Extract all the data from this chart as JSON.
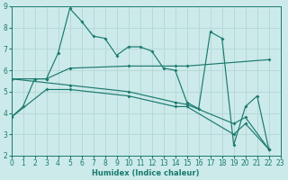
{
  "background_color": "#cceaea",
  "grid_color": "#b0d4d4",
  "line_color": "#1a7a6e",
  "xlabel": "Humidex (Indice chaleur)",
  "ylim": [
    2,
    9
  ],
  "xlim": [
    0,
    23
  ],
  "yticks": [
    2,
    3,
    4,
    5,
    6,
    7,
    8,
    9
  ],
  "xticks": [
    0,
    1,
    2,
    3,
    4,
    5,
    6,
    7,
    8,
    9,
    10,
    11,
    12,
    13,
    14,
    15,
    16,
    17,
    18,
    19,
    20,
    21,
    22,
    23
  ],
  "line1_x": [
    0,
    1,
    2,
    3,
    4,
    5,
    6,
    7,
    8,
    9,
    10,
    11,
    12,
    13,
    14,
    15,
    16,
    17,
    18,
    19,
    20,
    21,
    22
  ],
  "line1_y": [
    3.8,
    4.3,
    5.6,
    5.6,
    6.8,
    8.9,
    8.3,
    7.6,
    7.5,
    6.7,
    7.1,
    7.1,
    6.9,
    6.1,
    6.0,
    4.5,
    4.2,
    7.8,
    7.5,
    2.5,
    4.3,
    4.8,
    2.3
  ],
  "line2_x": [
    0,
    3,
    5,
    10,
    14,
    15,
    22
  ],
  "line2_y": [
    5.6,
    5.6,
    6.1,
    6.2,
    6.2,
    6.2,
    6.5
  ],
  "line3_x": [
    0,
    5,
    10,
    14,
    15,
    19,
    20,
    22
  ],
  "line3_y": [
    5.6,
    5.3,
    5.0,
    4.5,
    4.4,
    3.5,
    3.8,
    2.3
  ],
  "line4_x": [
    0,
    3,
    5,
    10,
    14,
    15,
    19,
    20,
    22
  ],
  "line4_y": [
    3.8,
    5.1,
    5.1,
    4.8,
    4.3,
    4.3,
    3.0,
    3.5,
    2.3
  ]
}
